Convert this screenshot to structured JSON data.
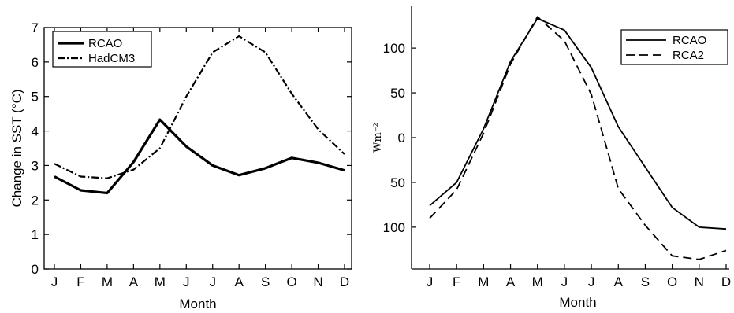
{
  "chart_data": [
    {
      "type": "line",
      "categories": [
        "J",
        "F",
        "M",
        "A",
        "M",
        "J",
        "J",
        "A",
        "S",
        "O",
        "N",
        "D"
      ],
      "xlabel": "Month",
      "ylabel": "Change in SST (°C)",
      "ylim": [
        0,
        7
      ],
      "yticks": [
        0,
        1,
        2,
        3,
        4,
        5,
        6,
        7
      ],
      "grid": false,
      "legend_position": "top-left",
      "series": [
        {
          "name": "RCAO",
          "style": "solid-thick",
          "values": [
            2.68,
            2.28,
            2.2,
            3.1,
            4.33,
            3.55,
            3.0,
            2.72,
            2.92,
            3.22,
            3.08,
            2.86
          ]
        },
        {
          "name": "HadCM3",
          "style": "dash-dot",
          "values": [
            3.05,
            2.68,
            2.63,
            2.88,
            3.5,
            5.0,
            6.28,
            6.75,
            6.28,
            5.08,
            4.05,
            3.33
          ]
        }
      ]
    },
    {
      "type": "line",
      "categories": [
        "J",
        "F",
        "M",
        "A",
        "M",
        "J",
        "J",
        "A",
        "S",
        "O",
        "N",
        "D"
      ],
      "xlabel": "Month",
      "ylabel": "Wm⁻²",
      "ylim": [
        -140,
        145
      ],
      "yticks": [
        100,
        50,
        0,
        -50,
        -100
      ],
      "ytick_labels": [
        "100",
        "50",
        "0",
        "50",
        "100"
      ],
      "grid": false,
      "legend_position": "top-right",
      "series": [
        {
          "name": "RCAO",
          "style": "solid",
          "values": [
            -76,
            -50,
            10,
            85,
            133,
            120,
            78,
            12,
            -33,
            -78,
            -100,
            -102
          ]
        },
        {
          "name": "RCA2",
          "style": "dashed",
          "values": [
            -90,
            -58,
            5,
            82,
            135,
            108,
            48,
            -57,
            -98,
            -132,
            -136,
            -126
          ]
        }
      ]
    }
  ]
}
